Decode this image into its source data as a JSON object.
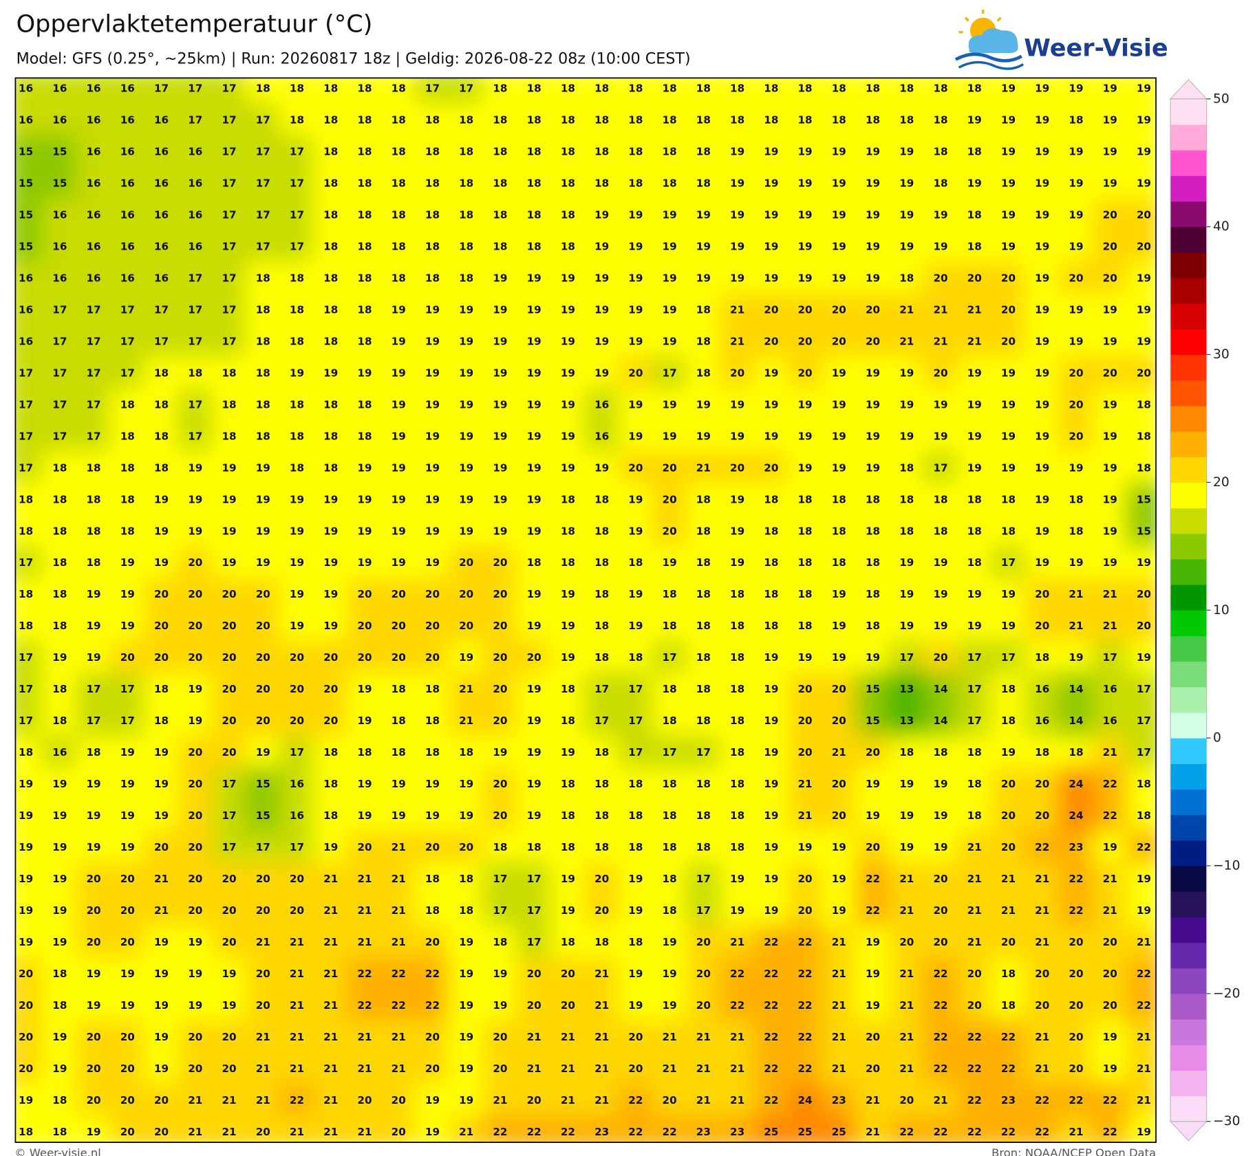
{
  "header": {
    "title": "Oppervlaktetemperatuur (°C)",
    "subtitle": "Model: GFS (0.25°, ~25km)  |  Run: 20260817 18z  |  Geldig: 2026-08-22 08z (10:00 CEST)"
  },
  "logo": {
    "text": "Weer-Visie"
  },
  "map": {
    "values": [
      [
        16,
        16,
        16,
        16,
        17,
        17,
        17,
        18,
        18,
        18,
        18,
        18,
        17,
        17,
        18,
        18,
        18,
        18,
        18,
        18,
        18,
        18,
        18,
        18,
        18,
        18,
        18,
        18,
        18,
        19,
        19,
        19,
        19,
        19
      ],
      [
        16,
        16,
        16,
        16,
        16,
        17,
        17,
        17,
        18,
        18,
        18,
        18,
        18,
        18,
        18,
        18,
        18,
        18,
        18,
        18,
        18,
        18,
        18,
        18,
        18,
        18,
        18,
        18,
        19,
        19,
        19,
        18,
        19,
        19
      ],
      [
        15,
        15,
        16,
        16,
        16,
        16,
        17,
        17,
        17,
        18,
        18,
        18,
        18,
        18,
        18,
        18,
        18,
        18,
        18,
        18,
        18,
        19,
        19,
        19,
        19,
        19,
        19,
        18,
        18,
        19,
        19,
        19,
        19,
        19
      ],
      [
        15,
        15,
        16,
        16,
        16,
        16,
        17,
        17,
        17,
        18,
        18,
        18,
        18,
        18,
        18,
        18,
        18,
        18,
        18,
        18,
        18,
        19,
        19,
        19,
        19,
        19,
        19,
        18,
        19,
        19,
        19,
        19,
        19,
        19
      ],
      [
        15,
        16,
        16,
        16,
        16,
        16,
        17,
        17,
        17,
        18,
        18,
        18,
        18,
        18,
        18,
        18,
        18,
        19,
        19,
        19,
        19,
        19,
        19,
        19,
        19,
        19,
        19,
        19,
        18,
        19,
        19,
        19,
        20,
        20
      ],
      [
        15,
        16,
        16,
        16,
        16,
        16,
        17,
        17,
        17,
        18,
        18,
        18,
        18,
        18,
        18,
        18,
        18,
        19,
        19,
        19,
        19,
        19,
        19,
        19,
        19,
        19,
        19,
        19,
        18,
        19,
        19,
        19,
        20,
        20
      ],
      [
        16,
        16,
        16,
        16,
        16,
        17,
        17,
        18,
        18,
        18,
        18,
        18,
        18,
        18,
        19,
        19,
        19,
        19,
        19,
        19,
        19,
        19,
        19,
        19,
        19,
        19,
        18,
        20,
        20,
        20,
        19,
        20,
        20,
        19
      ],
      [
        16,
        17,
        17,
        17,
        17,
        17,
        17,
        18,
        18,
        18,
        18,
        19,
        19,
        19,
        19,
        19,
        19,
        19,
        19,
        19,
        18,
        21,
        20,
        20,
        20,
        20,
        21,
        21,
        21,
        20,
        19,
        19,
        19,
        19
      ],
      [
        16,
        17,
        17,
        17,
        17,
        17,
        17,
        18,
        18,
        18,
        18,
        19,
        19,
        19,
        19,
        19,
        19,
        19,
        19,
        19,
        18,
        21,
        20,
        20,
        20,
        20,
        21,
        21,
        21,
        20,
        19,
        19,
        19,
        19
      ],
      [
        17,
        17,
        17,
        17,
        18,
        18,
        18,
        18,
        19,
        19,
        19,
        19,
        19,
        19,
        19,
        19,
        19,
        19,
        20,
        17,
        18,
        20,
        19,
        20,
        19,
        19,
        19,
        20,
        19,
        19,
        19,
        20,
        20,
        20
      ],
      [
        17,
        17,
        17,
        18,
        18,
        17,
        18,
        18,
        18,
        18,
        18,
        19,
        19,
        19,
        19,
        19,
        19,
        16,
        19,
        19,
        19,
        19,
        19,
        19,
        19,
        19,
        19,
        19,
        19,
        19,
        19,
        20,
        19,
        18
      ],
      [
        17,
        17,
        17,
        18,
        18,
        17,
        18,
        18,
        18,
        18,
        18,
        19,
        19,
        19,
        19,
        19,
        19,
        16,
        19,
        19,
        19,
        19,
        19,
        19,
        19,
        19,
        19,
        19,
        19,
        19,
        19,
        20,
        19,
        18
      ],
      [
        17,
        18,
        18,
        18,
        18,
        19,
        19,
        19,
        18,
        18,
        19,
        19,
        19,
        19,
        19,
        19,
        19,
        19,
        20,
        20,
        21,
        20,
        20,
        19,
        19,
        19,
        18,
        17,
        19,
        19,
        19,
        19,
        19,
        18
      ],
      [
        18,
        18,
        18,
        18,
        19,
        19,
        19,
        19,
        19,
        19,
        19,
        19,
        19,
        19,
        19,
        19,
        18,
        18,
        19,
        20,
        18,
        19,
        18,
        18,
        18,
        18,
        18,
        18,
        18,
        18,
        19,
        18,
        19,
        15
      ],
      [
        18,
        18,
        18,
        18,
        19,
        19,
        19,
        19,
        19,
        19,
        19,
        19,
        19,
        19,
        19,
        19,
        18,
        18,
        19,
        20,
        18,
        19,
        18,
        18,
        18,
        18,
        18,
        18,
        18,
        18,
        19,
        18,
        19,
        15
      ],
      [
        17,
        18,
        18,
        19,
        19,
        20,
        19,
        19,
        19,
        19,
        19,
        19,
        19,
        20,
        20,
        18,
        18,
        18,
        18,
        19,
        18,
        19,
        18,
        18,
        18,
        18,
        19,
        19,
        18,
        17,
        19,
        19,
        19,
        19
      ],
      [
        18,
        18,
        19,
        19,
        20,
        20,
        20,
        20,
        19,
        19,
        20,
        20,
        20,
        20,
        20,
        19,
        19,
        18,
        19,
        18,
        18,
        18,
        18,
        18,
        19,
        18,
        19,
        19,
        19,
        19,
        20,
        21,
        21,
        20
      ],
      [
        18,
        18,
        19,
        19,
        20,
        20,
        20,
        20,
        19,
        19,
        20,
        20,
        20,
        20,
        20,
        19,
        19,
        18,
        19,
        18,
        18,
        18,
        18,
        18,
        19,
        18,
        19,
        19,
        19,
        19,
        20,
        21,
        21,
        20
      ],
      [
        17,
        19,
        19,
        20,
        20,
        20,
        20,
        20,
        20,
        20,
        20,
        20,
        20,
        19,
        20,
        20,
        19,
        18,
        18,
        17,
        18,
        18,
        19,
        19,
        19,
        19,
        17,
        20,
        17,
        17,
        18,
        19,
        17,
        19
      ],
      [
        17,
        18,
        17,
        17,
        18,
        19,
        20,
        20,
        20,
        20,
        19,
        18,
        18,
        21,
        20,
        19,
        18,
        17,
        17,
        18,
        18,
        18,
        19,
        20,
        20,
        15,
        13,
        14,
        17,
        18,
        16,
        14,
        16,
        17
      ],
      [
        17,
        18,
        17,
        17,
        18,
        19,
        20,
        20,
        20,
        20,
        19,
        18,
        18,
        21,
        20,
        19,
        18,
        17,
        17,
        18,
        18,
        18,
        19,
        20,
        20,
        15,
        13,
        14,
        17,
        18,
        16,
        14,
        16,
        17
      ],
      [
        18,
        16,
        18,
        19,
        19,
        20,
        20,
        19,
        17,
        18,
        18,
        18,
        18,
        18,
        19,
        19,
        19,
        18,
        17,
        17,
        17,
        18,
        19,
        20,
        21,
        20,
        18,
        18,
        18,
        19,
        18,
        18,
        21,
        17
      ],
      [
        19,
        19,
        19,
        19,
        19,
        20,
        17,
        15,
        16,
        18,
        19,
        19,
        19,
        19,
        20,
        19,
        18,
        18,
        18,
        18,
        18,
        18,
        19,
        21,
        20,
        19,
        19,
        19,
        18,
        20,
        20,
        24,
        22,
        18
      ],
      [
        19,
        19,
        19,
        19,
        19,
        20,
        17,
        15,
        16,
        18,
        19,
        19,
        19,
        19,
        20,
        19,
        18,
        18,
        18,
        18,
        18,
        18,
        19,
        21,
        20,
        19,
        19,
        19,
        18,
        20,
        20,
        24,
        22,
        18
      ],
      [
        19,
        19,
        19,
        19,
        20,
        20,
        17,
        17,
        17,
        19,
        20,
        21,
        20,
        20,
        18,
        18,
        18,
        18,
        18,
        18,
        18,
        18,
        19,
        19,
        19,
        20,
        19,
        19,
        21,
        20,
        22,
        23,
        19,
        22
      ],
      [
        19,
        19,
        20,
        20,
        21,
        20,
        20,
        20,
        20,
        21,
        21,
        21,
        18,
        18,
        17,
        17,
        19,
        20,
        19,
        18,
        17,
        19,
        19,
        20,
        19,
        22,
        21,
        20,
        21,
        21,
        21,
        22,
        21,
        19
      ],
      [
        19,
        19,
        20,
        20,
        21,
        20,
        20,
        20,
        20,
        21,
        21,
        21,
        18,
        18,
        17,
        17,
        19,
        20,
        19,
        18,
        17,
        19,
        19,
        20,
        19,
        22,
        21,
        20,
        21,
        21,
        21,
        22,
        21,
        19
      ],
      [
        19,
        19,
        20,
        20,
        19,
        19,
        20,
        21,
        21,
        21,
        21,
        21,
        20,
        19,
        18,
        17,
        18,
        18,
        18,
        19,
        20,
        21,
        22,
        22,
        21,
        19,
        20,
        20,
        21,
        20,
        21,
        20,
        20,
        21
      ],
      [
        20,
        18,
        19,
        19,
        19,
        19,
        19,
        20,
        21,
        21,
        22,
        22,
        22,
        19,
        19,
        20,
        20,
        21,
        19,
        19,
        20,
        22,
        22,
        22,
        21,
        19,
        21,
        22,
        20,
        18,
        20,
        20,
        20,
        22
      ],
      [
        20,
        18,
        19,
        19,
        19,
        19,
        19,
        20,
        21,
        21,
        22,
        22,
        22,
        19,
        19,
        20,
        20,
        21,
        19,
        19,
        20,
        22,
        22,
        22,
        21,
        19,
        21,
        22,
        20,
        18,
        20,
        20,
        20,
        22
      ],
      [
        20,
        19,
        20,
        20,
        19,
        20,
        20,
        21,
        21,
        21,
        21,
        21,
        20,
        19,
        20,
        21,
        21,
        21,
        20,
        21,
        21,
        21,
        22,
        22,
        21,
        20,
        21,
        22,
        22,
        22,
        21,
        20,
        19,
        21
      ],
      [
        20,
        19,
        20,
        20,
        19,
        20,
        20,
        21,
        21,
        21,
        21,
        21,
        20,
        19,
        20,
        21,
        21,
        21,
        20,
        21,
        21,
        21,
        22,
        22,
        21,
        20,
        21,
        22,
        22,
        22,
        21,
        20,
        19,
        21
      ],
      [
        19,
        18,
        20,
        20,
        20,
        21,
        21,
        21,
        22,
        21,
        20,
        20,
        19,
        19,
        21,
        20,
        21,
        21,
        22,
        20,
        21,
        21,
        22,
        24,
        23,
        21,
        20,
        21,
        22,
        23,
        22,
        22,
        22,
        21
      ],
      [
        18,
        18,
        19,
        20,
        20,
        21,
        21,
        20,
        21,
        21,
        21,
        20,
        19,
        21,
        22,
        22,
        22,
        23,
        22,
        22,
        23,
        23,
        25,
        25,
        25,
        21,
        22,
        22,
        22,
        22,
        22,
        21,
        22,
        19
      ]
    ]
  },
  "colorbar": {
    "lim": [
      -30,
      50
    ],
    "ticks": [
      50,
      40,
      30,
      20,
      10,
      0,
      {
        "value": -10,
        "label": "−10"
      },
      {
        "value": -20,
        "label": "−20"
      },
      {
        "value": -30,
        "label": "−30"
      }
    ],
    "colors": [
      "#fadcf8",
      "#f5b4f0",
      "#e68ce6",
      "#c878dc",
      "#aa5ac8",
      "#8c46be",
      "#6428aa",
      "#460a8c",
      "#28145a",
      "#0a0a46",
      "#001e82",
      "#0046aa",
      "#0070d2",
      "#00a0e6",
      "#32c8ff",
      "#d2ffe6",
      "#aaf0aa",
      "#78dc78",
      "#46c846",
      "#00c800",
      "#009600",
      "#46b400",
      "#8cc800",
      "#c8dc00",
      "#ffff00",
      "#ffd700",
      "#ffb000",
      "#ff8800",
      "#ff5500",
      "#ff3300",
      "#ff0000",
      "#d60000",
      "#a80000",
      "#7d0000",
      "#4f0032",
      "#8b0a6e",
      "#d21ec0",
      "#ff55d0",
      "#ffaad9",
      "#ffe0f3"
    ]
  },
  "footer": {
    "left": "© Weer-visie.nl",
    "right": "Bron: NOAA/NCEP Open Data"
  }
}
